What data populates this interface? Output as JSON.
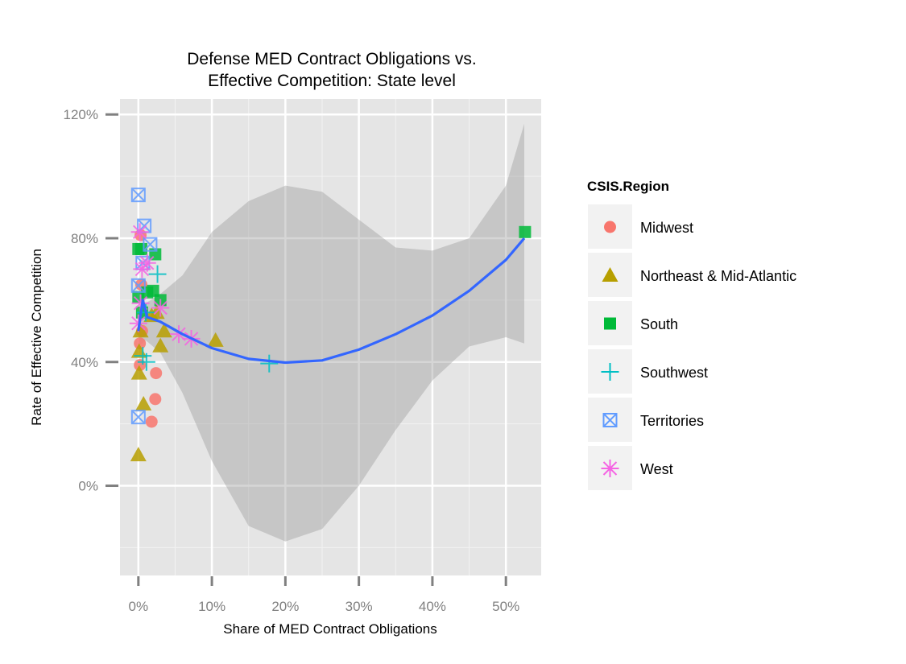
{
  "chart_data": {
    "type": "scatter",
    "title_lines": [
      "Defense MED Contract Obligations vs.",
      "Effective Competition: State level"
    ],
    "xlabel": "Share of MED Contract Obligations",
    "ylabel": "Rate of Effective Competition",
    "x_ticks": [
      {
        "value": 0,
        "label": "0%"
      },
      {
        "value": 0.1,
        "label": "10%"
      },
      {
        "value": 0.2,
        "label": "20%"
      },
      {
        "value": 0.3,
        "label": "30%"
      },
      {
        "value": 0.4,
        "label": "40%"
      },
      {
        "value": 0.5,
        "label": "50%"
      }
    ],
    "y_ticks": [
      {
        "value": 0,
        "label": "0%"
      },
      {
        "value": 0.4,
        "label": "40%"
      },
      {
        "value": 0.8,
        "label": "80%"
      },
      {
        "value": 1.2,
        "label": "120%"
      }
    ],
    "xlim": [
      -0.025,
      0.548
    ],
    "ylim": [
      -0.29,
      1.25
    ],
    "background_color": "#E5E5E5",
    "grid": true,
    "legend": {
      "title": "CSIS.Region",
      "position": "right",
      "entries": [
        {
          "name": "Midwest",
          "shape": "circle",
          "color": "#F8766D"
        },
        {
          "name": "Northeast & Mid-Atlantic",
          "shape": "triangle",
          "color": "#B79F00"
        },
        {
          "name": "South",
          "shape": "square",
          "color": "#00BA38"
        },
        {
          "name": "Southwest",
          "shape": "plus",
          "color": "#00BFC4"
        },
        {
          "name": "Territories",
          "shape": "boxed-x",
          "color": "#619CFF"
        },
        {
          "name": "West",
          "shape": "asterisk",
          "color": "#F564E3"
        }
      ]
    },
    "series": [
      {
        "region": "Midwest",
        "points": [
          {
            "x": 0.003,
            "y": 0.81
          },
          {
            "x": 0.004,
            "y": 0.65
          },
          {
            "x": 0.002,
            "y": 0.46
          },
          {
            "x": 0.002,
            "y": 0.39
          },
          {
            "x": 0.024,
            "y": 0.364
          },
          {
            "x": 0.023,
            "y": 0.28
          },
          {
            "x": 0.018,
            "y": 0.207
          },
          {
            "x": 0.005,
            "y": 0.5
          }
        ]
      },
      {
        "region": "Northeast & Mid-Atlantic",
        "points": [
          {
            "x": 0.0,
            "y": 0.1
          },
          {
            "x": 0.001,
            "y": 0.364
          },
          {
            "x": 0.007,
            "y": 0.264
          },
          {
            "x": 0.001,
            "y": 0.434
          },
          {
            "x": 0.003,
            "y": 0.5
          },
          {
            "x": 0.03,
            "y": 0.452
          },
          {
            "x": 0.035,
            "y": 0.5
          },
          {
            "x": 0.105,
            "y": 0.47
          },
          {
            "x": 0.018,
            "y": 0.55
          },
          {
            "x": 0.025,
            "y": 0.56
          }
        ]
      },
      {
        "region": "South",
        "points": [
          {
            "x": 0.0,
            "y": 0.765
          },
          {
            "x": 0.004,
            "y": 0.765
          },
          {
            "x": 0.023,
            "y": 0.748
          },
          {
            "x": 0.0,
            "y": 0.61
          },
          {
            "x": 0.02,
            "y": 0.63
          },
          {
            "x": 0.012,
            "y": 0.625
          },
          {
            "x": 0.03,
            "y": 0.6
          },
          {
            "x": 0.526,
            "y": 0.82
          },
          {
            "x": 0.005,
            "y": 0.56
          }
        ]
      },
      {
        "region": "Southwest",
        "points": [
          {
            "x": 0.026,
            "y": 0.684
          },
          {
            "x": 0.011,
            "y": 0.4
          },
          {
            "x": 0.006,
            "y": 0.42
          },
          {
            "x": 0.178,
            "y": 0.395
          },
          {
            "x": 0.01,
            "y": 0.56
          }
        ]
      },
      {
        "region": "Territories",
        "points": [
          {
            "x": 0.0,
            "y": 0.94
          },
          {
            "x": 0.008,
            "y": 0.84
          },
          {
            "x": 0.016,
            "y": 0.78
          },
          {
            "x": 0.0,
            "y": 0.647
          },
          {
            "x": 0.0,
            "y": 0.222
          },
          {
            "x": 0.006,
            "y": 0.72
          }
        ]
      },
      {
        "region": "West",
        "points": [
          {
            "x": 0.002,
            "y": 0.82
          },
          {
            "x": 0.005,
            "y": 0.7
          },
          {
            "x": 0.012,
            "y": 0.72
          },
          {
            "x": 0.0,
            "y": 0.525
          },
          {
            "x": 0.003,
            "y": 0.59
          },
          {
            "x": 0.03,
            "y": 0.575
          },
          {
            "x": 0.055,
            "y": 0.49
          },
          {
            "x": 0.072,
            "y": 0.475
          }
        ]
      }
    ],
    "smooth_line": {
      "color": "#3366FF",
      "points": [
        {
          "x": 0.0,
          "y": 0.5
        },
        {
          "x": 0.006,
          "y": 0.6
        },
        {
          "x": 0.012,
          "y": 0.545
        },
        {
          "x": 0.03,
          "y": 0.53
        },
        {
          "x": 0.06,
          "y": 0.49
        },
        {
          "x": 0.1,
          "y": 0.445
        },
        {
          "x": 0.15,
          "y": 0.41
        },
        {
          "x": 0.2,
          "y": 0.398
        },
        {
          "x": 0.25,
          "y": 0.405
        },
        {
          "x": 0.3,
          "y": 0.44
        },
        {
          "x": 0.35,
          "y": 0.49
        },
        {
          "x": 0.4,
          "y": 0.55
        },
        {
          "x": 0.45,
          "y": 0.63
        },
        {
          "x": 0.5,
          "y": 0.73
        },
        {
          "x": 0.525,
          "y": 0.8
        }
      ]
    },
    "confidence_band": {
      "color": "#999999",
      "upper": [
        {
          "x": 0.0,
          "y": 0.55
        },
        {
          "x": 0.01,
          "y": 0.59
        },
        {
          "x": 0.03,
          "y": 0.62
        },
        {
          "x": 0.06,
          "y": 0.68
        },
        {
          "x": 0.1,
          "y": 0.82
        },
        {
          "x": 0.15,
          "y": 0.92
        },
        {
          "x": 0.2,
          "y": 0.97
        },
        {
          "x": 0.25,
          "y": 0.95
        },
        {
          "x": 0.3,
          "y": 0.86
        },
        {
          "x": 0.35,
          "y": 0.77
        },
        {
          "x": 0.4,
          "y": 0.76
        },
        {
          "x": 0.45,
          "y": 0.8
        },
        {
          "x": 0.5,
          "y": 0.97
        },
        {
          "x": 0.525,
          "y": 1.17
        }
      ],
      "lower": [
        {
          "x": 0.0,
          "y": 0.45
        },
        {
          "x": 0.01,
          "y": 0.47
        },
        {
          "x": 0.03,
          "y": 0.43
        },
        {
          "x": 0.06,
          "y": 0.3
        },
        {
          "x": 0.1,
          "y": 0.08
        },
        {
          "x": 0.15,
          "y": -0.13
        },
        {
          "x": 0.2,
          "y": -0.18
        },
        {
          "x": 0.25,
          "y": -0.14
        },
        {
          "x": 0.3,
          "y": 0.0
        },
        {
          "x": 0.35,
          "y": 0.18
        },
        {
          "x": 0.4,
          "y": 0.34
        },
        {
          "x": 0.45,
          "y": 0.45
        },
        {
          "x": 0.5,
          "y": 0.48
        },
        {
          "x": 0.525,
          "y": 0.46
        }
      ]
    }
  }
}
